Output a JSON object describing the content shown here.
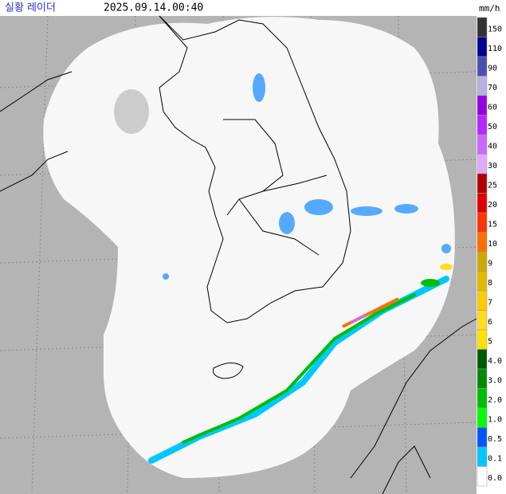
{
  "header": {
    "title": "실황 레이더",
    "time": "2025.09.14.00:40"
  },
  "legend": {
    "unit": "mm/h",
    "items": [
      {
        "label": "150",
        "color": "#333333"
      },
      {
        "label": "110",
        "color": "#000390"
      },
      {
        "label": "90",
        "color": "#4c4eb1"
      },
      {
        "label": "70",
        "color": "#b3b4de"
      },
      {
        "label": "60",
        "color": "#9300e4"
      },
      {
        "label": "50",
        "color": "#b329ff"
      },
      {
        "label": "40",
        "color": "#c969ff"
      },
      {
        "label": "30",
        "color": "#e0a9ff"
      },
      {
        "label": "25",
        "color": "#b40000"
      },
      {
        "label": "20",
        "color": "#e00000"
      },
      {
        "label": "15",
        "color": "#ff3200"
      },
      {
        "label": "10",
        "color": "#ff6e00"
      },
      {
        "label": "9",
        "color": "#ccaa00"
      },
      {
        "label": "8",
        "color": "#e0b900"
      },
      {
        "label": "7",
        "color": "#f9cd00"
      },
      {
        "label": "6",
        "color": "#ffdc1f"
      },
      {
        "label": "5",
        "color": "#ffe100"
      },
      {
        "label": "4.0",
        "color": "#005a00"
      },
      {
        "label": "3.0",
        "color": "#008c00"
      },
      {
        "label": "2.0",
        "color": "#00be00"
      },
      {
        "label": "1.0",
        "color": "#00ff00"
      },
      {
        "label": "0.5",
        "color": "#0055ff"
      },
      {
        "label": "0.1",
        "color": "#00c8ff"
      },
      {
        "label": "0.0",
        "color": "#ffffff"
      }
    ]
  }
}
